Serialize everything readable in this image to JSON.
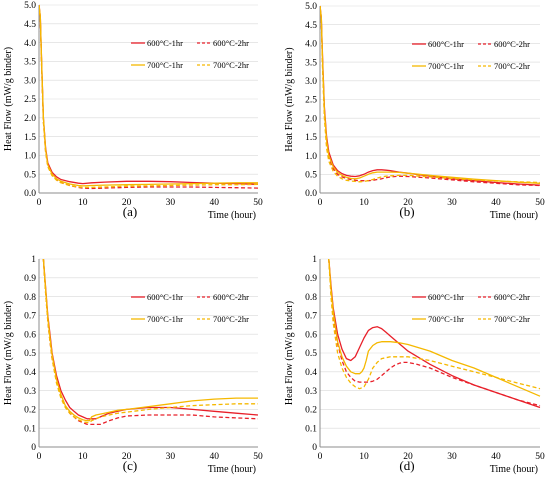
{
  "figure": {
    "colors": {
      "red": "#e8202a",
      "gold": "#f5b800",
      "axis": "#8c8c8c",
      "grid": "#d9d9d9"
    }
  },
  "chart_data": [
    {
      "type": "line",
      "caption": "(a)",
      "xlabel": "Time (hour)",
      "ylabel": "Heat Flow (mW/g binder)",
      "xlim": [
        0,
        50
      ],
      "ylim": [
        0,
        5
      ],
      "xticks": [
        "0",
        "10",
        "20",
        "30",
        "40",
        "50"
      ],
      "yticks": [
        "0.0",
        "0.5",
        "1.0",
        "1.5",
        "2.0",
        "2.5",
        "3.0",
        "3.5",
        "4.0",
        "4.5",
        "5.0"
      ],
      "grid": "horizontal",
      "legend_position": "top-right",
      "series": [
        {
          "name": "600°C-1hr",
          "color": "#e8202a",
          "dash": "solid",
          "x": [
            0,
            0.3,
            0.6,
            1,
            1.5,
            2,
            3,
            4,
            5,
            7,
            9,
            10,
            12,
            15,
            20,
            25,
            30,
            35,
            40,
            45,
            50
          ],
          "y": [
            5,
            4.7,
            3.5,
            2,
            1.2,
            0.8,
            0.55,
            0.43,
            0.36,
            0.3,
            0.26,
            0.25,
            0.27,
            0.29,
            0.31,
            0.31,
            0.3,
            0.28,
            0.26,
            0.25,
            0.23
          ]
        },
        {
          "name": "600°C-2hr",
          "color": "#e8202a",
          "dash": "dashed",
          "x": [
            0,
            0.3,
            0.6,
            1,
            1.5,
            2,
            3,
            4,
            5,
            7,
            9,
            10,
            12,
            15,
            20,
            25,
            30,
            35,
            40,
            45,
            50
          ],
          "y": [
            5,
            4.6,
            3.4,
            1.9,
            1.1,
            0.72,
            0.47,
            0.35,
            0.28,
            0.2,
            0.15,
            0.13,
            0.12,
            0.13,
            0.15,
            0.16,
            0.16,
            0.16,
            0.15,
            0.14,
            0.13
          ]
        },
        {
          "name": "700°C-1hr",
          "color": "#f5b800",
          "dash": "solid",
          "x": [
            0,
            0.3,
            0.6,
            1,
            1.5,
            2,
            3,
            4,
            5,
            7,
            9,
            10,
            12,
            15,
            20,
            25,
            30,
            35,
            40,
            45,
            50
          ],
          "y": [
            5,
            4.7,
            3.5,
            2,
            1.15,
            0.75,
            0.5,
            0.38,
            0.31,
            0.24,
            0.2,
            0.19,
            0.2,
            0.21,
            0.22,
            0.23,
            0.24,
            0.25,
            0.26,
            0.27,
            0.27
          ]
        },
        {
          "name": "700°C-2hr",
          "color": "#f5b800",
          "dash": "dashed",
          "x": [
            0,
            0.3,
            0.6,
            1,
            1.5,
            2,
            3,
            4,
            5,
            7,
            9,
            10,
            12,
            15,
            20,
            25,
            30,
            35,
            40,
            45,
            50
          ],
          "y": [
            5,
            4.6,
            3.4,
            1.9,
            1.1,
            0.7,
            0.46,
            0.34,
            0.27,
            0.2,
            0.16,
            0.15,
            0.15,
            0.16,
            0.18,
            0.19,
            0.2,
            0.21,
            0.22,
            0.22,
            0.23
          ]
        }
      ]
    },
    {
      "type": "line",
      "caption": "(b)",
      "xlabel": "Time (hour)",
      "ylabel": "Heat Flow (mW/g binder)",
      "xlim": [
        0,
        50
      ],
      "ylim": [
        0,
        5
      ],
      "xticks": [
        "0",
        "10",
        "20",
        "30",
        "40",
        "50"
      ],
      "yticks": [
        "0.0",
        "0.5",
        "1.0",
        "1.5",
        "2.0",
        "2.5",
        "3.0",
        "3.5",
        "4.0",
        "4.5",
        "5.0"
      ],
      "grid": "horizontal",
      "legend_position": "top-right",
      "series": [
        {
          "name": "600°C-1hr",
          "color": "#e8202a",
          "dash": "solid",
          "x": [
            0,
            0.3,
            0.6,
            1,
            1.5,
            2,
            3,
            4,
            5,
            6,
            7,
            8,
            9,
            10,
            11,
            12,
            13,
            14,
            15,
            16,
            18,
            20,
            25,
            30,
            35,
            40,
            45,
            50
          ],
          "y": [
            5,
            4.7,
            3.6,
            2.3,
            1.5,
            1.1,
            0.75,
            0.6,
            0.52,
            0.47,
            0.45,
            0.44,
            0.46,
            0.5,
            0.56,
            0.6,
            0.62,
            0.62,
            0.61,
            0.6,
            0.56,
            0.53,
            0.45,
            0.38,
            0.33,
            0.28,
            0.24,
            0.21
          ]
        },
        {
          "name": "600°C-2hr",
          "color": "#e8202a",
          "dash": "dashed",
          "x": [
            0,
            0.3,
            0.6,
            1,
            1.5,
            2,
            3,
            4,
            5,
            6,
            7,
            8,
            9,
            10,
            11,
            12,
            13,
            14,
            15,
            16,
            18,
            20,
            25,
            30,
            35,
            40,
            45,
            50
          ],
          "y": [
            5,
            4.6,
            3.4,
            2.1,
            1.3,
            0.95,
            0.65,
            0.5,
            0.43,
            0.39,
            0.36,
            0.34,
            0.33,
            0.33,
            0.33,
            0.34,
            0.36,
            0.38,
            0.41,
            0.43,
            0.45,
            0.44,
            0.4,
            0.35,
            0.3,
            0.26,
            0.22,
            0.2
          ]
        },
        {
          "name": "700°C-1hr",
          "color": "#f5b800",
          "dash": "solid",
          "x": [
            0,
            0.3,
            0.6,
            1,
            1.5,
            2,
            3,
            4,
            5,
            6,
            7,
            8,
            9,
            10,
            11,
            12,
            13,
            14,
            15,
            16,
            18,
            20,
            25,
            30,
            35,
            40,
            45,
            50
          ],
          "y": [
            5,
            4.7,
            3.5,
            2.2,
            1.4,
            1.0,
            0.7,
            0.55,
            0.47,
            0.42,
            0.39,
            0.38,
            0.4,
            0.45,
            0.5,
            0.54,
            0.56,
            0.56,
            0.56,
            0.56,
            0.55,
            0.53,
            0.47,
            0.42,
            0.37,
            0.33,
            0.29,
            0.26
          ]
        },
        {
          "name": "700°C-2hr",
          "color": "#f5b800",
          "dash": "dashed",
          "x": [
            0,
            0.3,
            0.6,
            1,
            1.5,
            2,
            3,
            4,
            5,
            6,
            7,
            8,
            9,
            10,
            11,
            12,
            13,
            14,
            15,
            16,
            18,
            20,
            25,
            30,
            35,
            40,
            45,
            50
          ],
          "y": [
            5,
            4.6,
            3.3,
            2.0,
            1.2,
            0.85,
            0.58,
            0.45,
            0.38,
            0.34,
            0.32,
            0.31,
            0.3,
            0.31,
            0.33,
            0.36,
            0.4,
            0.43,
            0.45,
            0.46,
            0.47,
            0.47,
            0.43,
            0.39,
            0.35,
            0.32,
            0.3,
            0.28
          ]
        }
      ]
    },
    {
      "type": "line",
      "caption": "(c)",
      "xlabel": "Time (hour)",
      "ylabel": "Heat Flow (mW/g binder)",
      "xlim": [
        0,
        50
      ],
      "ylim": [
        0,
        1
      ],
      "xticks": [
        "0",
        "10",
        "20",
        "30",
        "40",
        "50"
      ],
      "yticks": [
        "0",
        "0.1",
        "0.2",
        "0.3",
        "0.4",
        "0.5",
        "0.6",
        "0.7",
        "0.8",
        "0.9",
        "1"
      ],
      "grid": "horizontal",
      "legend_position": "top-right",
      "series": [
        {
          "name": "600°C-1hr",
          "color": "#e8202a",
          "dash": "solid",
          "x": [
            1,
            1.5,
            2,
            2.5,
            3,
            4,
            5,
            6,
            7,
            8,
            9,
            10,
            11,
            12,
            13,
            14,
            16,
            18,
            20,
            25,
            30,
            35,
            40,
            45,
            50
          ],
          "y": [
            1,
            0.85,
            0.7,
            0.6,
            0.5,
            0.38,
            0.3,
            0.25,
            0.21,
            0.19,
            0.17,
            0.16,
            0.15,
            0.15,
            0.15,
            0.16,
            0.18,
            0.19,
            0.2,
            0.21,
            0.21,
            0.2,
            0.19,
            0.18,
            0.17
          ]
        },
        {
          "name": "600°C-2hr",
          "color": "#e8202a",
          "dash": "dashed",
          "x": [
            1,
            1.5,
            2,
            2.5,
            3,
            4,
            5,
            6,
            7,
            8,
            9,
            10,
            11,
            12,
            13,
            14,
            15,
            16,
            18,
            20,
            25,
            30,
            35,
            40,
            45,
            50
          ],
          "y": [
            1,
            0.82,
            0.67,
            0.56,
            0.47,
            0.35,
            0.27,
            0.22,
            0.18,
            0.16,
            0.14,
            0.13,
            0.12,
            0.12,
            0.12,
            0.12,
            0.13,
            0.14,
            0.155,
            0.165,
            0.17,
            0.17,
            0.17,
            0.16,
            0.155,
            0.15
          ]
        },
        {
          "name": "700°C-1hr",
          "color": "#f5b800",
          "dash": "solid",
          "x": [
            1,
            1.5,
            2,
            2.5,
            3,
            4,
            5,
            6,
            7,
            8,
            9,
            10,
            11,
            11.5,
            12,
            13,
            14,
            16,
            18,
            20,
            25,
            30,
            35,
            40,
            45,
            50
          ],
          "y": [
            1,
            0.84,
            0.69,
            0.58,
            0.49,
            0.36,
            0.28,
            0.22,
            0.19,
            0.17,
            0.155,
            0.145,
            0.14,
            0.14,
            0.16,
            0.17,
            0.175,
            0.185,
            0.195,
            0.2,
            0.215,
            0.23,
            0.245,
            0.255,
            0.26,
            0.26
          ]
        },
        {
          "name": "700°C-2hr",
          "color": "#f5b800",
          "dash": "dashed",
          "x": [
            1,
            1.5,
            2,
            2.5,
            3,
            4,
            5,
            6,
            7,
            8,
            9,
            10,
            11,
            11.5,
            12,
            13,
            14,
            16,
            18,
            20,
            25,
            30,
            35,
            40,
            45,
            50
          ],
          "y": [
            1,
            0.82,
            0.67,
            0.56,
            0.47,
            0.34,
            0.26,
            0.21,
            0.18,
            0.16,
            0.145,
            0.135,
            0.13,
            0.13,
            0.14,
            0.15,
            0.16,
            0.17,
            0.18,
            0.185,
            0.2,
            0.21,
            0.22,
            0.225,
            0.23,
            0.23
          ]
        }
      ]
    },
    {
      "type": "line",
      "caption": "(d)",
      "xlabel": "Time (hour)",
      "ylabel": "Heat Flow (mW/g binder)",
      "xlim": [
        0,
        50
      ],
      "ylim": [
        0,
        1
      ],
      "xticks": [
        "0",
        "10",
        "20",
        "30",
        "40",
        "50"
      ],
      "yticks": [
        "0",
        "0.1",
        "0.2",
        "0.3",
        "0.4",
        "0.5",
        "0.6",
        "0.7",
        "0.8",
        "0.9",
        "1"
      ],
      "grid": "horizontal",
      "legend_position": "top-right",
      "series": [
        {
          "name": "600°C-1hr",
          "color": "#e8202a",
          "dash": "solid",
          "x": [
            2,
            2.5,
            3,
            4,
            5,
            6,
            7,
            8,
            9,
            10,
            11,
            12,
            13,
            14,
            15,
            16,
            18,
            20,
            25,
            30,
            35,
            40,
            45,
            50
          ],
          "y": [
            1,
            0.86,
            0.74,
            0.6,
            0.52,
            0.47,
            0.46,
            0.48,
            0.53,
            0.58,
            0.62,
            0.635,
            0.64,
            0.63,
            0.61,
            0.59,
            0.55,
            0.51,
            0.44,
            0.38,
            0.33,
            0.29,
            0.25,
            0.21
          ]
        },
        {
          "name": "600°C-2hr",
          "color": "#e8202a",
          "dash": "dashed",
          "x": [
            2,
            2.5,
            3,
            4,
            5,
            6,
            7,
            8,
            9,
            10,
            11,
            12,
            13,
            14,
            15,
            16,
            17,
            18,
            19,
            20,
            22,
            25,
            30,
            35,
            40,
            45,
            50
          ],
          "y": [
            1,
            0.82,
            0.7,
            0.55,
            0.46,
            0.4,
            0.37,
            0.35,
            0.345,
            0.345,
            0.345,
            0.35,
            0.36,
            0.38,
            0.4,
            0.42,
            0.435,
            0.445,
            0.45,
            0.45,
            0.44,
            0.42,
            0.37,
            0.33,
            0.29,
            0.25,
            0.22
          ]
        },
        {
          "name": "700°C-1hr",
          "color": "#f5b800",
          "dash": "solid",
          "x": [
            2,
            2.5,
            3,
            4,
            5,
            6,
            7,
            8,
            9,
            9.5,
            10,
            10.5,
            11,
            12,
            13,
            14,
            15,
            16,
            18,
            20,
            25,
            30,
            35,
            40,
            45,
            50
          ],
          "y": [
            1,
            0.84,
            0.72,
            0.56,
            0.48,
            0.43,
            0.4,
            0.39,
            0.39,
            0.4,
            0.42,
            0.46,
            0.51,
            0.54,
            0.555,
            0.56,
            0.56,
            0.56,
            0.555,
            0.545,
            0.51,
            0.46,
            0.42,
            0.37,
            0.32,
            0.27
          ]
        },
        {
          "name": "700°C-2hr",
          "color": "#f5b800",
          "dash": "dashed",
          "x": [
            2,
            2.5,
            3,
            4,
            5,
            6,
            7,
            8,
            9,
            10,
            11,
            12,
            13,
            14,
            15,
            16,
            18,
            20,
            25,
            30,
            35,
            40,
            45,
            50
          ],
          "y": [
            1,
            0.8,
            0.66,
            0.5,
            0.42,
            0.37,
            0.34,
            0.32,
            0.31,
            0.32,
            0.36,
            0.42,
            0.45,
            0.47,
            0.475,
            0.48,
            0.48,
            0.48,
            0.46,
            0.43,
            0.4,
            0.37,
            0.34,
            0.31
          ]
        }
      ]
    }
  ]
}
